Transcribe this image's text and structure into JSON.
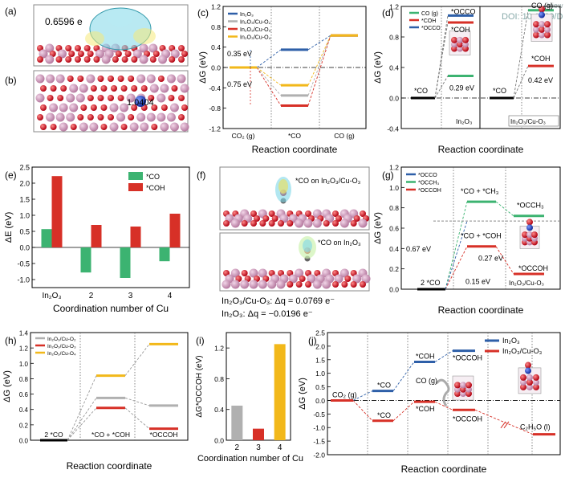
{
  "figure": {
    "watermark": "DOI: 10.1039/D",
    "watermark_top": "View"
  },
  "colors": {
    "blue": "#2e5fa8",
    "red": "#d73027",
    "gray": "#b0b0b0",
    "yellow": "#f2b81a",
    "green": "#3cb371",
    "cu": "#c98fb3",
    "o": "#c4141c",
    "n": "#1f3fbf"
  },
  "panels": {
    "a": {
      "label": "(a)",
      "charge": "0.6596 e"
    },
    "b": {
      "label": "(b)",
      "charge": "1.0404"
    },
    "f": {
      "label": "(f)",
      "top_caption": "*CO on In₂O₃/Cu-O₃",
      "bottom_caption": "*CO on In₂O₃",
      "dq1": "In₂O₃/Cu-O₃: Δq = 0.0769 e⁻",
      "dq2": "In₂O₃: Δq = −0.0196 e⁻"
    }
  },
  "chart_data": [
    {
      "id": "c",
      "label": "(c)",
      "type": "line",
      "xlabel": "Reaction coordinate",
      "ylabel": "ΔG (eV)",
      "ylim": [
        -1.2,
        1.2
      ],
      "yticks": [
        "1.2",
        "0.8",
        "0.4",
        "0.0",
        "-0.4",
        "-0.8",
        "-1.2"
      ],
      "categories": [
        "CO₂ (g)",
        "*CO",
        "CO (g)"
      ],
      "series": [
        {
          "name": "In₂O₃",
          "color": "#2e5fa8",
          "values": [
            0,
            0.35,
            0.63
          ]
        },
        {
          "name": "In₂O₃/Cu-O₂",
          "color": "#b0b0b0",
          "values": [
            0,
            -0.55,
            0.63
          ]
        },
        {
          "name": "In₂O₃/Cu-O₃",
          "color": "#d73027",
          "values": [
            0,
            -0.75,
            0.63
          ]
        },
        {
          "name": "In₂O₃/Cu-O₄",
          "color": "#f2b81a",
          "values": [
            0,
            -0.35,
            0.63
          ]
        }
      ],
      "annotations": [
        "0.35 eV",
        "0.75 eV"
      ]
    },
    {
      "id": "d",
      "label": "(d)",
      "type": "line",
      "xlabel": "Reaction coordinate",
      "ylabel": "ΔG (eV)",
      "ylim": [
        -0.4,
        1.2
      ],
      "yticks": [
        "1.2",
        "0.8",
        "0.4",
        "0.0",
        "-0.4"
      ],
      "series": [
        {
          "name": "CO (g)",
          "color": "#3cb371"
        },
        {
          "name": "*COH",
          "color": "#d73027"
        },
        {
          "name": "*OCCO",
          "color": "#2e5fa8"
        }
      ],
      "subpanels": [
        {
          "name": "In₂O₃",
          "levels": {
            "*CO": 0,
            "CO (g)": 0.29,
            "*COH": 0.99,
            "*OCCO": 1.08
          }
        },
        {
          "name": "In₂O₃/Cu-O₃",
          "levels": {
            "*CO": 0,
            "*COH": 0.42,
            "CO (g)": 1.15
          }
        }
      ],
      "annotations": [
        "*OCCO",
        "*COH",
        "0.29 eV",
        "CO (g)",
        "*COH",
        "0.42 eV",
        "*CO",
        "*CO"
      ]
    },
    {
      "id": "e",
      "label": "(e)",
      "type": "bar",
      "xlabel": "Coordination number of Cu",
      "ylabel": "ΔE (eV)",
      "ylim": [
        -1.25,
        2.5
      ],
      "yticks": [
        "2.5",
        "2.0",
        "1.5",
        "1.0",
        "0.5",
        "0.0",
        "-0.5",
        "-1.0"
      ],
      "categories": [
        "In₂O₃",
        "2",
        "3",
        "4"
      ],
      "series": [
        {
          "name": "*CO",
          "color": "#3cb371",
          "values": [
            0.57,
            -0.78,
            -0.95,
            -0.43
          ]
        },
        {
          "name": "*COH",
          "color": "#d73027",
          "values": [
            2.22,
            0.7,
            0.65,
            1.05
          ]
        }
      ]
    },
    {
      "id": "g",
      "label": "(g)",
      "type": "line",
      "xlabel": "Reaction coordinate",
      "ylabel": "ΔG (eV)",
      "ylim": [
        0,
        1.2
      ],
      "yticks": [
        "1.2",
        "1.0",
        "0.8",
        "0.6",
        "0.4",
        "0.2",
        "0.0"
      ],
      "series": [
        {
          "name": "*OCCO",
          "color": "#2e5fa8"
        },
        {
          "name": "*OCCH₃",
          "color": "#3cb371"
        },
        {
          "name": "*OCCOH",
          "color": "#d73027"
        }
      ],
      "levels": {
        "2 *CO": 0,
        "*CO + *CH₃": 0.86,
        "*OCCH₃": 0.72,
        "*CO + *COH": 0.42,
        "*OCCOH": 0.15,
        "*OCCO": 0.67
      },
      "annotations": [
        "0.67 eV",
        "0.27 eV",
        "0.15 eV",
        "In₂O₃/Cu-O₃"
      ]
    },
    {
      "id": "h",
      "label": "(h)",
      "type": "line",
      "xlabel": "Reaction coordinate",
      "ylabel": "ΔG (eV)",
      "ylim": [
        0,
        1.4
      ],
      "yticks": [
        "1.4",
        "1.2",
        "1.0",
        "0.8",
        "0.6",
        "0.4",
        "0.2",
        "0.0"
      ],
      "categories": [
        "2 *CO",
        "*CO + *COH",
        "*OCCOH"
      ],
      "series": [
        {
          "name": "In₂O₃/Cu-O₂",
          "color": "#b0b0b0",
          "values": [
            0,
            0.55,
            0.45
          ]
        },
        {
          "name": "In₂O₃/Cu-O₃",
          "color": "#d73027",
          "values": [
            0,
            0.42,
            0.15
          ]
        },
        {
          "name": "In₂O₃/Cu-O₄",
          "color": "#f2b81a",
          "values": [
            0,
            0.84,
            1.25
          ]
        }
      ]
    },
    {
      "id": "i",
      "label": "(i)",
      "type": "bar",
      "xlabel": "Coordination number of Cu",
      "ylabel": "ΔG*OCCOH (eV)",
      "ylim": [
        0,
        1.4
      ],
      "yticks": [
        "1.2",
        "0.8",
        "0.4",
        "0.0"
      ],
      "categories": [
        "2",
        "3",
        "4"
      ],
      "values": [
        0.45,
        0.15,
        1.25
      ],
      "colors": [
        "#b0b0b0",
        "#d73027",
        "#f2b81a"
      ]
    },
    {
      "id": "j",
      "label": "(j)",
      "type": "line",
      "xlabel": "Reaction coordinate",
      "ylabel": "ΔG (eV)",
      "ylim": [
        -2.0,
        2.5
      ],
      "yticks": [
        "2.5",
        "2.0",
        "1.5",
        "1.0",
        "0.5",
        "0.0",
        "-0.5",
        "-1.0",
        "-1.5",
        "-2.0"
      ],
      "series": [
        {
          "name": "In₂O₃",
          "color": "#2e5fa8"
        },
        {
          "name": "In₂O₃/Cu-O₃",
          "color": "#d73027"
        }
      ],
      "levels": {
        "CO₂ (g)": 0,
        "In₂O₃ *CO": 0.35,
        "CO (g)": 0.63,
        "In₂O₃ *COH": 1.42,
        "In₂O₃ *OCCOH": 1.83,
        "Cu *CO": -0.75,
        "Cu *COH": -0.05,
        "Cu *OCCOH": -0.35,
        "C₂H₅O (l)": -1.25
      },
      "annotations": [
        "CO₂ (g)",
        "*CO",
        "*CO",
        "CO (g)",
        "*COH",
        "*COH",
        "*OCCOH",
        "*OCCOH",
        "C₂H₅O (l)"
      ]
    }
  ]
}
